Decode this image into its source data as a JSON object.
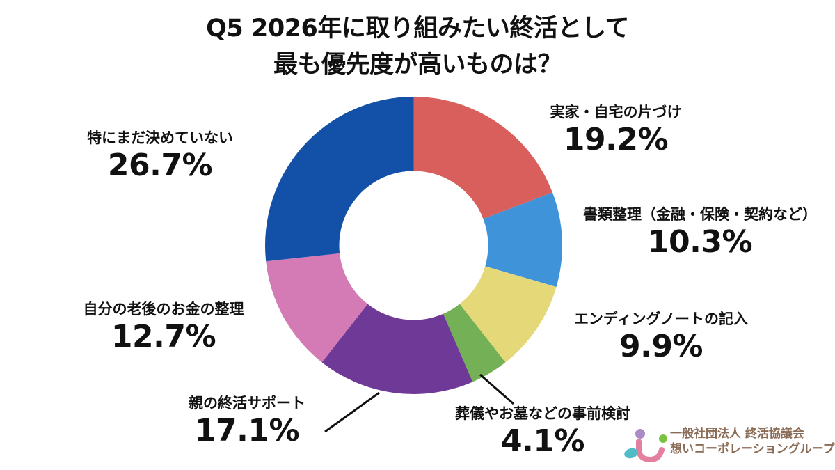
{
  "title": {
    "line1": "Q5 2026年に取り組みたい終活として",
    "line2": "最も優先度が高いものは？"
  },
  "chart_data": {
    "type": "pie",
    "subtype": "donut",
    "title": "Q5 2026年に取り組みたい終活として最も優先度が高いものは？",
    "start_angle_deg": 0,
    "direction": "clockwise",
    "center": [
      594.5,
      352.5
    ],
    "outer_radius": 213.5,
    "inner_radius": 107,
    "unit": "%",
    "categories": [
      "実家・自宅の片づけ",
      "書類整理（金融・保険・契約など）",
      "エンディングノートの記入",
      "葬儀やお墓などの事前検討",
      "親の終活サポート",
      "自分の老後のお金の整理",
      "特にまだ決めていない"
    ],
    "values": [
      19.2,
      10.3,
      9.9,
      4.1,
      17.1,
      12.7,
      26.7
    ],
    "colors": [
      "#d95f5d",
      "#3f94d9",
      "#e5d879",
      "#73b056",
      "#6f3a97",
      "#d47ab5",
      "#1350a8"
    ],
    "legend": "none (direct labels)"
  },
  "labels": [
    {
      "name": "実家・自宅の片づけ",
      "pct": "19.2%"
    },
    {
      "name": "書類整理（金融・保険・契約など）",
      "pct": "10.3%"
    },
    {
      "name": "エンディングノートの記入",
      "pct": "9.9%"
    },
    {
      "name": "葬儀やお墓などの事前検討",
      "pct": "4.1%"
    },
    {
      "name": "親の終活サポート",
      "pct": "17.1%"
    },
    {
      "name": "自分の老後のお金の整理",
      "pct": "12.7%"
    },
    {
      "name": "特にまだ決めていない",
      "pct": "26.7%"
    }
  ],
  "leader_lines": [
    {
      "for": "葬儀やお墓などの事前検討",
      "from": [
        690,
        538
      ],
      "to": [
        738,
        580
      ]
    },
    {
      "for": "親の終活サポート",
      "from": [
        545,
        564
      ],
      "to": [
        467,
        620
      ]
    }
  ],
  "logo": {
    "line1": "一般社団法人 終活協議会",
    "line2": "想いコーポレーショングループ",
    "colors": {
      "purple": "#a98bc7",
      "green": "#7cc242",
      "pink": "#e47fa0",
      "teal": "#4fbcc6",
      "text": "#8a6b55"
    }
  }
}
